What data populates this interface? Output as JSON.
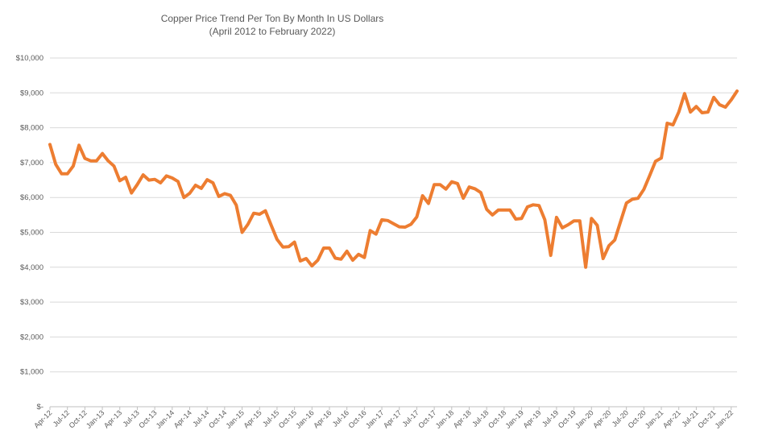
{
  "chart_data": {
    "type": "line",
    "title": "Copper Price Trend Per Ton By Month In US Dollars",
    "subtitle": "(April 2012 to February 2022)",
    "xlabel": "",
    "ylabel": "",
    "x_range": [
      "Apr-12",
      "Feb-22"
    ],
    "ylim": [
      0,
      10000
    ],
    "grid": true,
    "legend": "none",
    "line_color": "#ED7D31",
    "y_tick_labels": [
      "$-",
      "$1,000",
      "$2,000",
      "$3,000",
      "$4,000",
      "$5,000",
      "$6,000",
      "$7,000",
      "$8,000",
      "$9,000",
      "$10,000"
    ],
    "x_tick_labels": [
      "Apr-12",
      "Jul-12",
      "Oct-12",
      "Jan-13",
      "Apr-13",
      "Jul-13",
      "Oct-13",
      "Jan-14",
      "Apr-14",
      "Jul-14",
      "Oct-14",
      "Jan-15",
      "Apr-15",
      "Jul-15",
      "Oct-15",
      "Jan-16",
      "Apr-16",
      "Jul-16",
      "Oct-16",
      "Jan-17",
      "Apr-17",
      "Jul-17",
      "Oct-17",
      "Jan-18",
      "Apr-18",
      "Jul-18",
      "Oct-18",
      "Jan-19",
      "Apr-19",
      "Jul-19",
      "Oct-19",
      "Jan-20",
      "Apr-20",
      "Jul-20",
      "Oct-20",
      "Jan-21",
      "Apr-21",
      "Jul-21",
      "Oct-21",
      "Jan-22"
    ],
    "values": [
      7520,
      6950,
      6680,
      6680,
      6900,
      7500,
      7120,
      7050,
      7050,
      7260,
      7050,
      6900,
      6480,
      6580,
      6130,
      6370,
      6650,
      6500,
      6520,
      6420,
      6620,
      6560,
      6460,
      6000,
      6120,
      6350,
      6260,
      6510,
      6420,
      6030,
      6110,
      6060,
      5780,
      5000,
      5230,
      5550,
      5520,
      5620,
      5200,
      4800,
      4580,
      4590,
      4720,
      4180,
      4250,
      4040,
      4200,
      4550,
      4550,
      4260,
      4230,
      4460,
      4200,
      4370,
      4280,
      5050,
      4950,
      5360,
      5340,
      5250,
      5160,
      5150,
      5230,
      5440,
      6050,
      5830,
      6370,
      6370,
      6240,
      6450,
      6400,
      5980,
      6300,
      6250,
      6140,
      5660,
      5500,
      5640,
      5640,
      5640,
      5380,
      5400,
      5730,
      5790,
      5770,
      5360,
      4340,
      5430,
      5130,
      5220,
      5330,
      5330,
      4000,
      5400,
      5200,
      4250,
      4620,
      4780,
      5310,
      5840,
      5950,
      5980,
      6230,
      6630,
      7040,
      7130,
      8130,
      8080,
      8450,
      8980,
      8450,
      8610,
      8430,
      8450,
      8870,
      8660,
      8590,
      8800,
      9050
    ]
  }
}
